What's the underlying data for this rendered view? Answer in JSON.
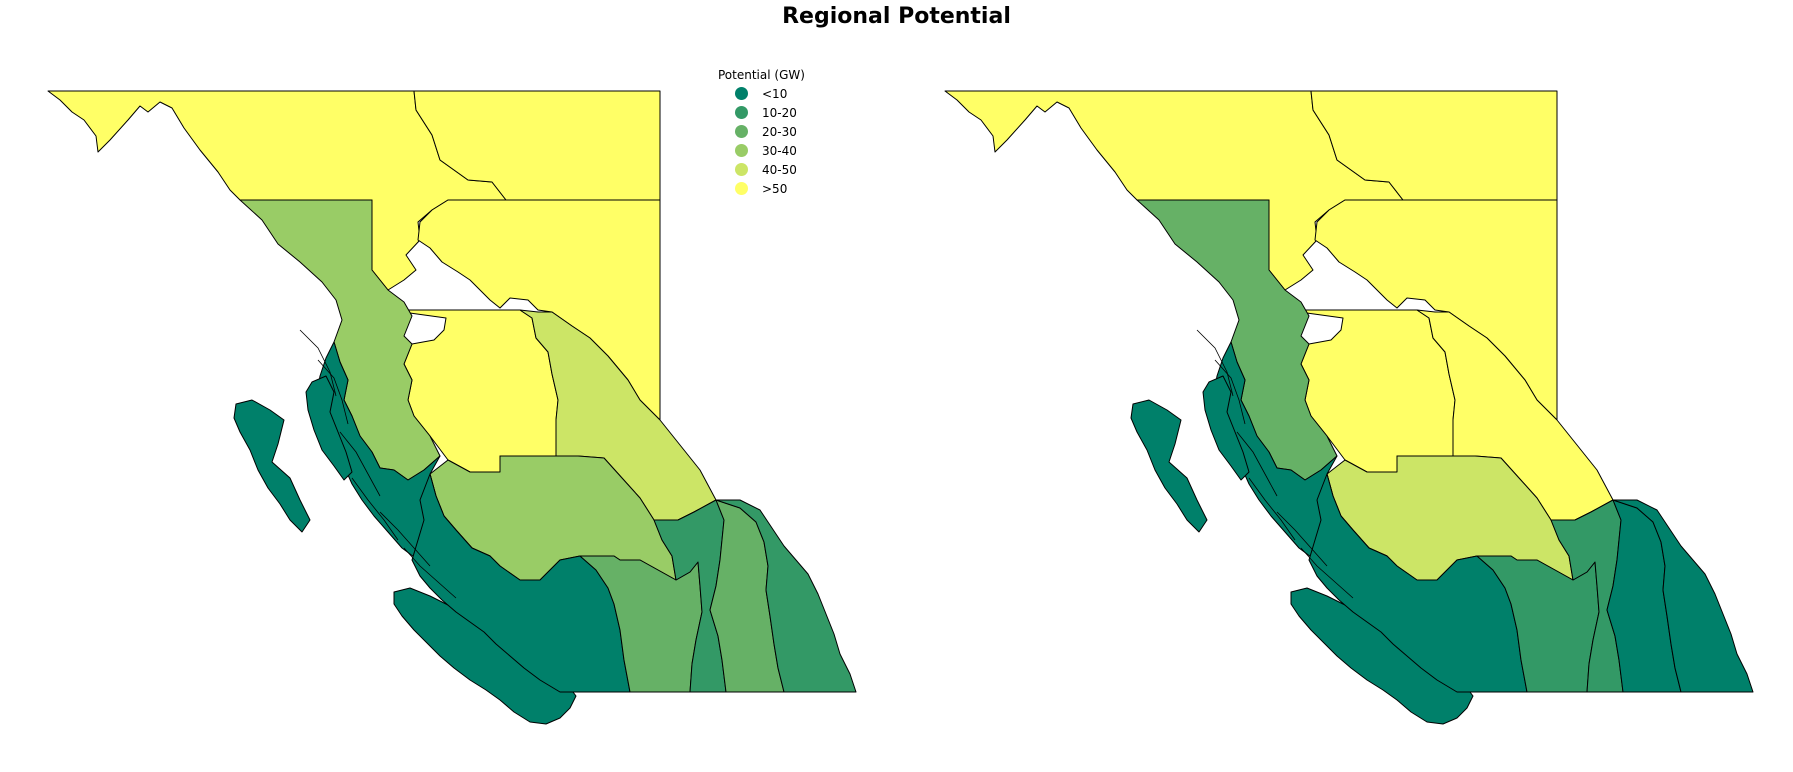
{
  "title": "Regional Potential",
  "legend": {
    "title": "Potential (GW)",
    "items": [
      {
        "label": "<10",
        "color": "#00806a"
      },
      {
        "label": "10-20",
        "color": "#339966"
      },
      {
        "label": "20-30",
        "color": "#66b166"
      },
      {
        "label": "30-40",
        "color": "#99cc66"
      },
      {
        "label": "40-50",
        "color": "#cce566"
      },
      {
        "label": ">50",
        "color": "#ffff66"
      }
    ]
  },
  "maps": [
    {
      "regions": {
        "north-west": ">50",
        "north-central": ">50",
        "north-east": ">50",
        "central-north": ">50",
        "coast-north": "30-40",
        "central-west": ">50",
        "rocky-north": "40-50",
        "central-plateau": "30-40",
        "coast-south": "<10",
        "islands": "<10",
        "south-coast": "<10",
        "thompson": "20-30",
        "okanagan": "10-20",
        "kootenay-central": "20-30",
        "kootenay-east": "10-20"
      }
    },
    {
      "regions": {
        "north-west": ">50",
        "north-central": ">50",
        "north-east": ">50",
        "central-north": ">50",
        "coast-north": "20-30",
        "central-west": ">50",
        "rocky-north": ">50",
        "central-plateau": "40-50",
        "coast-south": "<10",
        "islands": "<10",
        "south-coast": "<10",
        "thompson": "10-20",
        "okanagan": "10-20",
        "kootenay-central": "<10",
        "kootenay-east": "<10"
      }
    }
  ]
}
